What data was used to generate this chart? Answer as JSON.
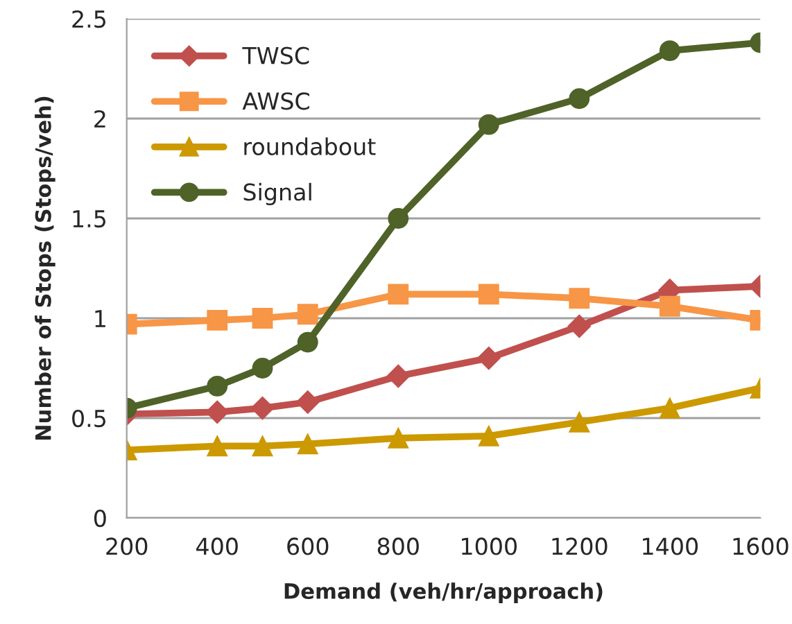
{
  "chart_data": {
    "type": "line",
    "xlabel": "Demand (veh/hr/approach)",
    "ylabel": "Number of Stops (Stops/veh)",
    "x": [
      200,
      400,
      500,
      600,
      800,
      1000,
      1200,
      1400,
      1600
    ],
    "series": [
      {
        "name": "TWSC",
        "color": "#c0504d",
        "marker": "diamond",
        "values": [
          0.52,
          0.53,
          0.55,
          0.58,
          0.71,
          0.8,
          0.96,
          1.14,
          1.16
        ]
      },
      {
        "name": "AWSC",
        "color": "#f79646",
        "marker": "square",
        "values": [
          0.97,
          0.99,
          1.0,
          1.02,
          1.12,
          1.12,
          1.1,
          1.06,
          0.99
        ]
      },
      {
        "name": "roundabout",
        "color": "#cc9900",
        "marker": "triangle",
        "values": [
          0.34,
          0.36,
          0.36,
          0.37,
          0.4,
          0.41,
          0.48,
          0.55,
          0.65
        ]
      },
      {
        "name": "Signal",
        "color": "#4f6228",
        "marker": "circle",
        "values": [
          0.55,
          0.66,
          0.75,
          0.88,
          1.5,
          1.97,
          2.1,
          2.34,
          2.38
        ]
      }
    ],
    "xlim": [
      200,
      1600
    ],
    "xticks": [
      200,
      400,
      600,
      800,
      1000,
      1200,
      1400,
      1600
    ],
    "ylim": [
      0,
      2.5
    ],
    "yticks": [
      0,
      0.5,
      1,
      1.5,
      2,
      2.5
    ],
    "grid": "y",
    "legend": "top left",
    "line_style": "solid"
  }
}
